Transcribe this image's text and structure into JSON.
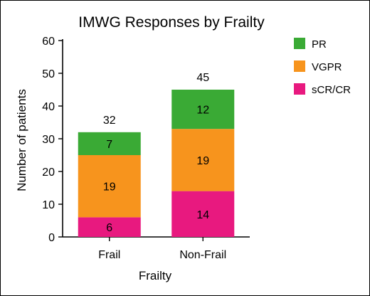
{
  "chart_data": {
    "type": "bar",
    "stacked": true,
    "title": "IMWG Responses by Frailty",
    "xlabel": "Frailty",
    "ylabel": "Number of patients",
    "categories": [
      "Frail",
      "Non-Frail"
    ],
    "ylim": [
      0,
      60
    ],
    "yticks": [
      "0",
      "10",
      "20",
      "30",
      "40",
      "50",
      "60"
    ],
    "series": [
      {
        "name": "sCR/CR",
        "color": "#e8197f",
        "values": [
          6,
          14
        ]
      },
      {
        "name": "VGPR",
        "color": "#f7941d",
        "values": [
          19,
          19
        ]
      },
      {
        "name": "PR",
        "color": "#3aaa35",
        "values": [
          7,
          12
        ]
      }
    ],
    "totals": [
      "32",
      "45"
    ],
    "legend": {
      "position": "top-right",
      "entries": [
        {
          "label": "PR",
          "color": "#3aaa35"
        },
        {
          "label": "VGPR",
          "color": "#f7941d"
        },
        {
          "label": "sCR/CR",
          "color": "#e8197f"
        }
      ]
    },
    "grid": false
  }
}
